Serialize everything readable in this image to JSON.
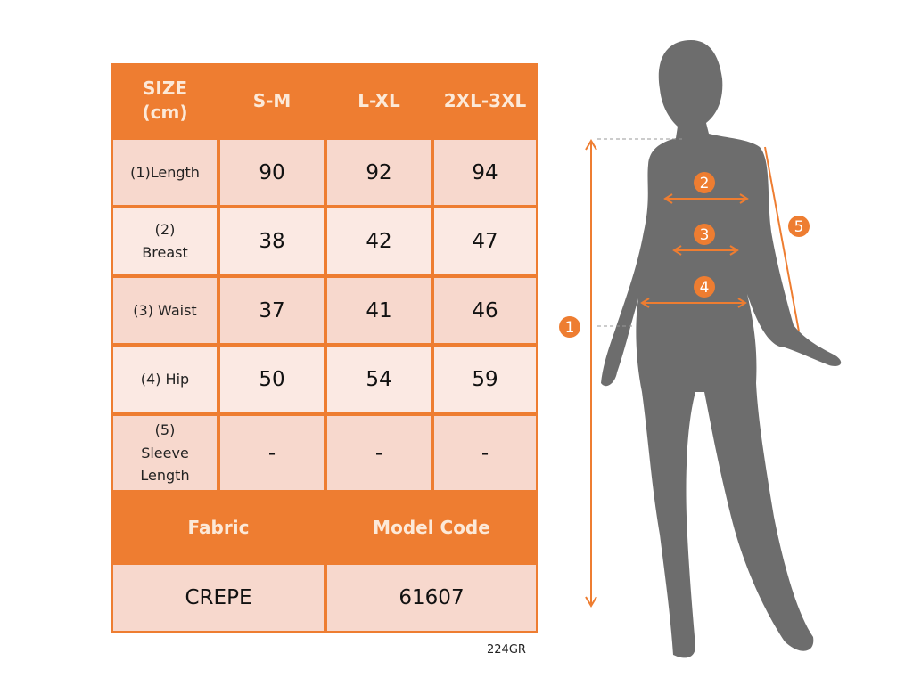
{
  "table": {
    "corner": "SIZE\n(cm)",
    "sizes": [
      "S-M",
      "L-XL",
      "2XL-3XL"
    ],
    "rows": [
      {
        "label": "(1)Length",
        "values": [
          "90",
          "92",
          "94"
        ]
      },
      {
        "label": "(2) Breast",
        "values": [
          "38",
          "42",
          "47"
        ]
      },
      {
        "label": "(3) Waist",
        "values": [
          "37",
          "41",
          "46"
        ]
      },
      {
        "label": "(4) Hip",
        "values": [
          "50",
          "54",
          "59"
        ]
      },
      {
        "label": "(5) Sleeve Length",
        "values": [
          "-",
          "-",
          "-"
        ]
      }
    ],
    "fabric_label": "Fabric",
    "model_code_label": "Model Code",
    "fabric": "CREPE",
    "model_code": "61607"
  },
  "product_code": "224GR",
  "figure": {
    "markers": [
      "1",
      "2",
      "3",
      "4",
      "5"
    ]
  },
  "colors": {
    "accent": "#ee7d31",
    "row_dark": "#f7d8cd",
    "row_light": "#fbe9e3",
    "silhouette": "#6d6d6d"
  }
}
